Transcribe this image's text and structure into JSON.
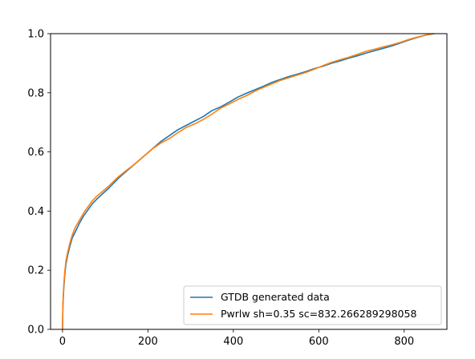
{
  "chart_data": {
    "type": "line",
    "title": "",
    "xlabel": "",
    "ylabel": "",
    "xlim": [
      -28,
      900
    ],
    "ylim": [
      0.0,
      1.0
    ],
    "xticks": [
      0,
      200,
      400,
      600,
      800
    ],
    "xtick_labels": [
      "0",
      "200",
      "400",
      "600",
      "800"
    ],
    "yticks": [
      0.0,
      0.2,
      0.4,
      0.6,
      0.8,
      1.0
    ],
    "ytick_labels": [
      "0.0",
      "0.2",
      "0.4",
      "0.6",
      "0.8",
      "1.0"
    ],
    "grid": false,
    "legend_position": "lower-right",
    "series": [
      {
        "name": "GTDB generated data",
        "color": "#1f77b4",
        "x": [
          0,
          1,
          3,
          5,
          8,
          12,
          17,
          23,
          30,
          40,
          50,
          60,
          70,
          80,
          95,
          110,
          130,
          150,
          170,
          190,
          210,
          230,
          250,
          270,
          290,
          310,
          330,
          350,
          370,
          390,
          410,
          430,
          450,
          470,
          490,
          510,
          530,
          550,
          570,
          590,
          610,
          630,
          650,
          670,
          690,
          710,
          730,
          750,
          770,
          790,
          810,
          830,
          850,
          870
        ],
        "y": [
          0.0,
          0.08,
          0.14,
          0.18,
          0.22,
          0.25,
          0.28,
          0.31,
          0.33,
          0.36,
          0.385,
          0.405,
          0.425,
          0.44,
          0.46,
          0.48,
          0.51,
          0.535,
          0.56,
          0.585,
          0.61,
          0.635,
          0.655,
          0.675,
          0.69,
          0.705,
          0.72,
          0.74,
          0.752,
          0.768,
          0.785,
          0.798,
          0.81,
          0.822,
          0.835,
          0.845,
          0.855,
          0.863,
          0.872,
          0.882,
          0.89,
          0.9,
          0.908,
          0.917,
          0.925,
          0.934,
          0.942,
          0.95,
          0.958,
          0.968,
          0.978,
          0.987,
          0.995,
          1.0
        ]
      },
      {
        "name": "Pwrlw sh=0.35 sc=832.266289298058",
        "color": "#ff7f0e",
        "x": [
          0,
          1,
          3,
          5,
          8,
          12,
          17,
          23,
          30,
          40,
          50,
          60,
          70,
          80,
          95,
          110,
          130,
          150,
          170,
          190,
          210,
          230,
          250,
          270,
          290,
          310,
          330,
          350,
          370,
          390,
          410,
          430,
          450,
          470,
          490,
          510,
          530,
          550,
          570,
          590,
          610,
          630,
          650,
          670,
          690,
          710,
          730,
          750,
          770,
          790,
          810,
          830,
          850,
          870
        ],
        "y": [
          0.0,
          0.09,
          0.15,
          0.19,
          0.23,
          0.26,
          0.29,
          0.32,
          0.345,
          0.37,
          0.395,
          0.415,
          0.435,
          0.45,
          0.468,
          0.487,
          0.515,
          0.538,
          0.56,
          0.585,
          0.61,
          0.63,
          0.645,
          0.665,
          0.683,
          0.695,
          0.71,
          0.728,
          0.748,
          0.762,
          0.777,
          0.79,
          0.805,
          0.818,
          0.83,
          0.842,
          0.851,
          0.86,
          0.869,
          0.88,
          0.892,
          0.903,
          0.912,
          0.92,
          0.93,
          0.94,
          0.947,
          0.955,
          0.962,
          0.97,
          0.98,
          0.988,
          0.995,
          1.0
        ]
      }
    ]
  }
}
